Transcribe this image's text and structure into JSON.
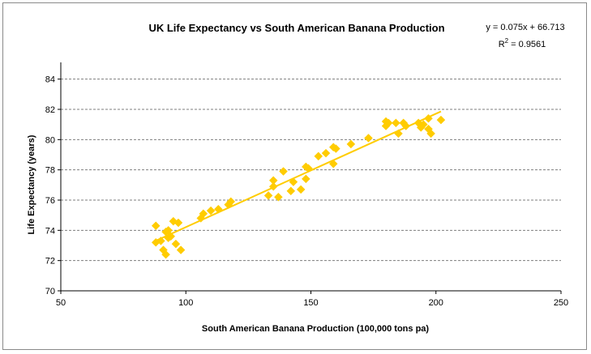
{
  "chart_data": {
    "type": "scatter",
    "title": "UK Life Expectancy vs South American Banana Production",
    "xlabel": "South American Banana Production (100,000 tons pa)",
    "ylabel": "Life Expectancy (years)",
    "xlim": [
      50,
      250
    ],
    "ylim": [
      70,
      85
    ],
    "xticks": [
      50,
      100,
      150,
      200,
      250
    ],
    "yticks": [
      70,
      72,
      74,
      76,
      78,
      80,
      82,
      84
    ],
    "grid": "horizontal-dashed",
    "trendline": {
      "slope": 0.075,
      "intercept": 66.713,
      "x_range": [
        88,
        202
      ],
      "equation": "y = 0.075x + 66.713",
      "r2_prefix": "R",
      "r2_exp": "2",
      "r2_value": " = 0.9561"
    },
    "series": [
      {
        "name": "UK Life Expectancy",
        "color": "#ffcc00",
        "marker": "diamond",
        "points": [
          [
            88,
            74.3
          ],
          [
            88,
            73.2
          ],
          [
            90,
            73.3
          ],
          [
            91,
            72.7
          ],
          [
            92,
            72.4
          ],
          [
            92,
            73.9
          ],
          [
            93,
            74.0
          ],
          [
            93,
            73.5
          ],
          [
            94,
            73.6
          ],
          [
            95,
            74.6
          ],
          [
            96,
            73.1
          ],
          [
            97,
            74.5
          ],
          [
            98,
            72.7
          ],
          [
            106,
            74.8
          ],
          [
            107,
            75.1
          ],
          [
            110,
            75.3
          ],
          [
            113,
            75.4
          ],
          [
            117,
            75.7
          ],
          [
            118,
            75.9
          ],
          [
            133,
            76.3
          ],
          [
            135,
            76.9
          ],
          [
            135,
            77.3
          ],
          [
            137,
            76.2
          ],
          [
            139,
            77.9
          ],
          [
            142,
            76.6
          ],
          [
            143,
            77.2
          ],
          [
            146,
            76.7
          ],
          [
            148,
            77.4
          ],
          [
            148,
            78.2
          ],
          [
            149,
            78.1
          ],
          [
            153,
            78.9
          ],
          [
            156,
            79.1
          ],
          [
            159,
            78.4
          ],
          [
            159,
            79.5
          ],
          [
            160,
            79.4
          ],
          [
            166,
            79.7
          ],
          [
            173,
            80.1
          ],
          [
            180,
            80.9
          ],
          [
            180,
            81.2
          ],
          [
            181,
            81.1
          ],
          [
            184,
            81.1
          ],
          [
            185,
            80.4
          ],
          [
            187,
            81.1
          ],
          [
            188,
            80.9
          ],
          [
            193,
            81.1
          ],
          [
            194,
            80.8
          ],
          [
            195,
            81.0
          ],
          [
            197,
            81.4
          ],
          [
            197,
            80.7
          ],
          [
            198,
            80.4
          ],
          [
            202,
            81.3
          ]
        ]
      }
    ]
  }
}
